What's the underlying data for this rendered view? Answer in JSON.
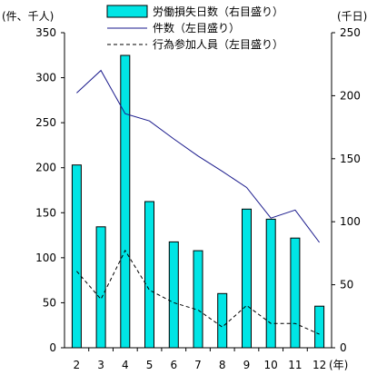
{
  "chart_data": {
    "type": "bar",
    "categories": [
      "2",
      "3",
      "4",
      "5",
      "6",
      "7",
      "8",
      "9",
      "10",
      "11",
      "12"
    ],
    "x_unit": "(年)",
    "left_axis": {
      "unit": "(件、千人)",
      "ylim": [
        0,
        350
      ],
      "ticks": [
        0,
        50,
        100,
        150,
        200,
        250,
        300,
        350
      ]
    },
    "right_axis": {
      "unit": "(千日)",
      "ylim": [
        0,
        250
      ],
      "ticks": [
        0,
        50,
        100,
        150,
        200,
        250
      ]
    },
    "grid": false,
    "legend_position": "top-center",
    "series": [
      {
        "name": "労働損失日数（右目盛り）",
        "type": "bar",
        "axis": "right",
        "color": "#00e5e5",
        "values": [
          145,
          96,
          232,
          116,
          84,
          77,
          43,
          110,
          102,
          87,
          33
        ]
      },
      {
        "name": "件数（左目盛り）",
        "type": "line",
        "axis": "left",
        "color": "#1a1a8c",
        "values": [
          283,
          308,
          260,
          252,
          232,
          213,
          196,
          178,
          144,
          153,
          117
        ]
      },
      {
        "name": "行為参加人員（左目盛り）",
        "type": "line",
        "axis": "left",
        "dashed": true,
        "color": "#000000",
        "values": [
          85,
          54,
          108,
          64,
          50,
          42,
          23,
          47,
          27,
          27,
          15
        ]
      }
    ]
  }
}
